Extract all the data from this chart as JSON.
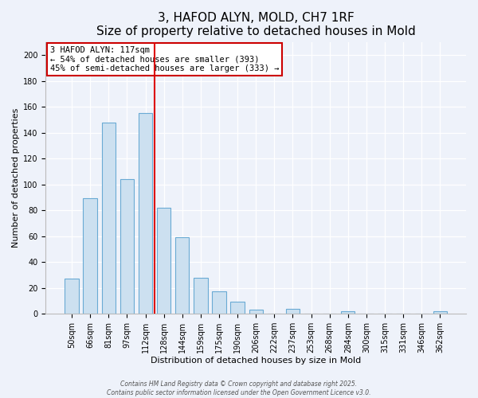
{
  "title": "3, HAFOD ALYN, MOLD, CH7 1RF",
  "subtitle": "Size of property relative to detached houses in Mold",
  "xlabel": "Distribution of detached houses by size in Mold",
  "ylabel": "Number of detached properties",
  "categories": [
    "50sqm",
    "66sqm",
    "81sqm",
    "97sqm",
    "112sqm",
    "128sqm",
    "144sqm",
    "159sqm",
    "175sqm",
    "190sqm",
    "206sqm",
    "222sqm",
    "237sqm",
    "253sqm",
    "268sqm",
    "284sqm",
    "300sqm",
    "315sqm",
    "331sqm",
    "346sqm",
    "362sqm"
  ],
  "values": [
    27,
    89,
    148,
    104,
    155,
    82,
    59,
    28,
    17,
    9,
    3,
    0,
    4,
    0,
    0,
    2,
    0,
    0,
    0,
    0,
    2
  ],
  "bar_color": "#cce0f0",
  "bar_edge_color": "#6aaad4",
  "vline_color": "#dd0000",
  "vline_x": 4.5,
  "annotation_title": "3 HAFOD ALYN: 117sqm",
  "annotation_line1": "← 54% of detached houses are smaller (393)",
  "annotation_line2": "45% of semi-detached houses are larger (333) →",
  "annotation_box_color": "#ffffff",
  "annotation_box_edge_color": "#cc0000",
  "ylim": [
    0,
    210
  ],
  "yticks": [
    0,
    20,
    40,
    60,
    80,
    100,
    120,
    140,
    160,
    180,
    200
  ],
  "footer_line1": "Contains HM Land Registry data © Crown copyright and database right 2025.",
  "footer_line2": "Contains public sector information licensed under the Open Government Licence v3.0.",
  "bg_color": "#eef2fa",
  "grid_color": "#ffffff",
  "title_fontsize": 11,
  "axis_label_fontsize": 8,
  "tick_fontsize": 7,
  "annotation_fontsize": 7.5,
  "footer_fontsize": 5.5
}
